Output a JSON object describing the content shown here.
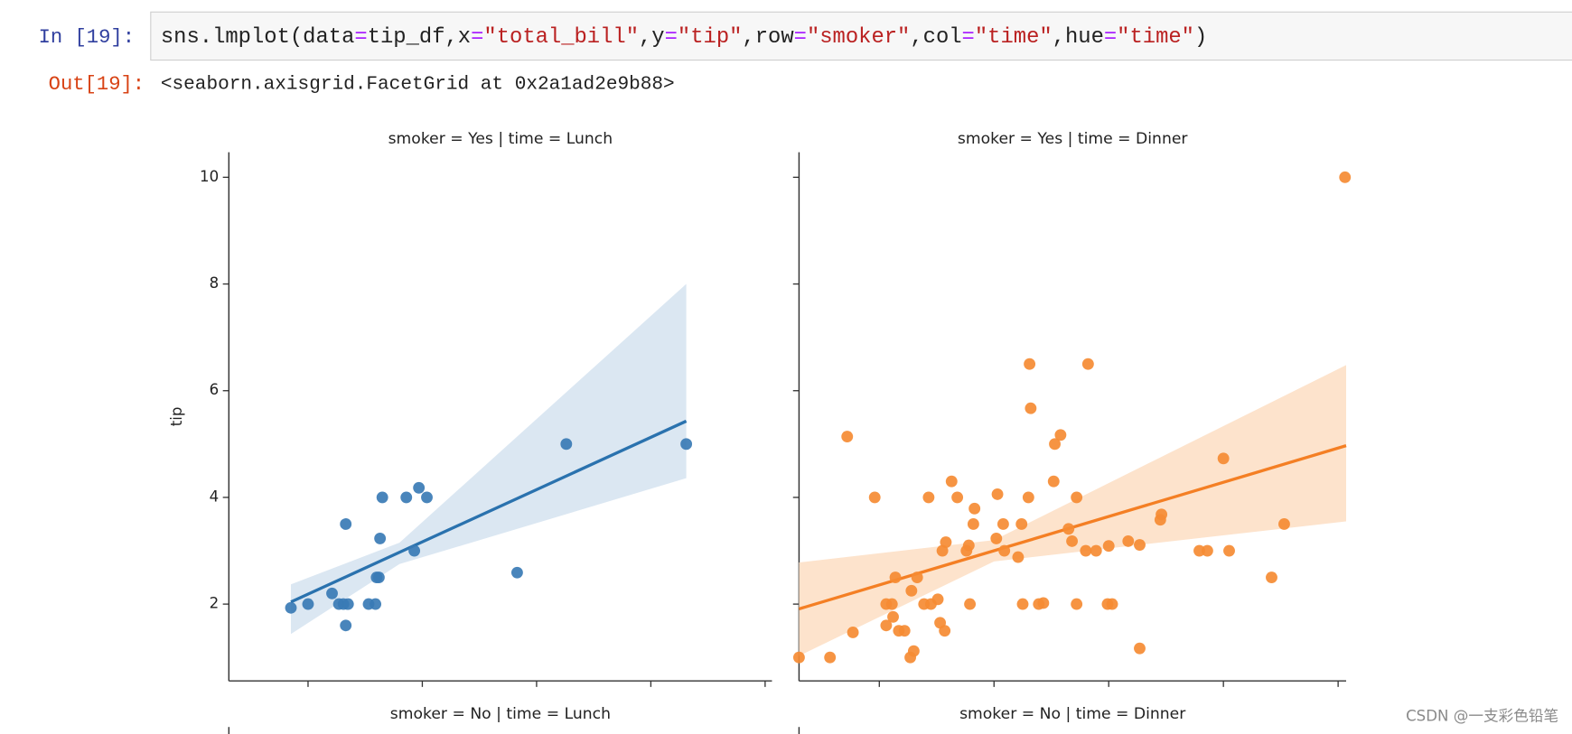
{
  "cell": {
    "in_prompt": "In  [19]:",
    "code": [
      {
        "text": "sns.lmplot(data",
        "color": "#222222"
      },
      {
        "text": "=",
        "color": "#aa22ff"
      },
      {
        "text": "tip_df,x",
        "color": "#222222"
      },
      {
        "text": "=",
        "color": "#aa22ff"
      },
      {
        "text": "\"total_bill\"",
        "color": "#ba2121"
      },
      {
        "text": ",y",
        "color": "#222222"
      },
      {
        "text": "=",
        "color": "#aa22ff"
      },
      {
        "text": "\"tip\"",
        "color": "#ba2121"
      },
      {
        "text": ",row",
        "color": "#222222"
      },
      {
        "text": "=",
        "color": "#aa22ff"
      },
      {
        "text": "\"smoker\"",
        "color": "#ba2121"
      },
      {
        "text": ",col",
        "color": "#222222"
      },
      {
        "text": "=",
        "color": "#aa22ff"
      },
      {
        "text": "\"time\"",
        "color": "#ba2121"
      },
      {
        "text": ",hue",
        "color": "#222222"
      },
      {
        "text": "=",
        "color": "#aa22ff"
      },
      {
        "text": "\"time\"",
        "color": "#ba2121"
      },
      {
        "text": ")",
        "color": "#222222"
      }
    ],
    "out_prompt": "Out[19]:",
    "output": "<seaborn.axisgrid.FacetGrid at 0x2a1ad2e9b88>"
  },
  "chart_data": [
    {
      "type": "scatter",
      "title": "smoker = Yes | time = Lunch",
      "ylabel": "tip",
      "color": "#3a7bb5",
      "x": [
        8.5,
        10,
        12.1,
        12.7,
        13.1,
        13.5,
        13.3,
        13.3,
        15.3,
        15.9,
        16.0,
        16.2,
        16.3,
        16.5,
        18.6,
        19.3,
        19.7,
        20.4,
        28.3,
        32.6,
        43.1
      ],
      "y": [
        1.93,
        2.0,
        2.2,
        2.0,
        2.0,
        2.0,
        3.5,
        1.6,
        2.0,
        2.0,
        2.5,
        2.5,
        3.23,
        4.0,
        4.0,
        3.0,
        4.18,
        4.0,
        2.59,
        5.0,
        5.0
      ],
      "fit": {
        "x": [
          8.5,
          18,
          43.1
        ],
        "y": [
          2.04,
          2.97,
          5.43
        ],
        "lower": [
          1.44,
          2.75,
          4.36
        ],
        "upper": [
          2.37,
          3.15,
          8.0
        ],
        "color": "#2a72ae",
        "band_color": "#dbe7f2"
      },
      "xlim": [
        3.07,
        50.6
      ],
      "xticks": [
        10,
        20,
        30,
        40,
        50
      ],
      "ylim": [
        0.56,
        10.47
      ],
      "yticks": [
        2,
        4,
        6,
        8,
        10
      ],
      "show_ytick_labels": true
    },
    {
      "type": "scatter",
      "title": "smoker = Yes | time = Dinner",
      "color": "#f58b33",
      "x": [
        3.0,
        5.7,
        7.2,
        7.7,
        9.6,
        10.6,
        11.1,
        10.6,
        11.4,
        11.2,
        11.7,
        12.2,
        12.7,
        13.0,
        12.8,
        13.3,
        13.9,
        14.3,
        14.5,
        15.1,
        15.3,
        15.7,
        15.5,
        15.8,
        16.3,
        16.8,
        17.6,
        17.8,
        17.9,
        18.2,
        18.3,
        20.3,
        20.2,
        20.9,
        20.8,
        22.1,
        22.4,
        22.5,
        23.0,
        23.1,
        23.2,
        23.9,
        24.3,
        25.2,
        25.3,
        25.8,
        26.5,
        26.8,
        27.2,
        27.2,
        28.0,
        28.2,
        28.9,
        29.9,
        30.3,
        30.0,
        31.7,
        32.7,
        32.7,
        34.5,
        34.6,
        37.9,
        38.6,
        40.0,
        40.5,
        44.2,
        45.3,
        50.6
      ],
      "y": [
        1.0,
        1.0,
        5.14,
        1.47,
        4.0,
        2.0,
        2.0,
        1.6,
        2.5,
        1.76,
        1.5,
        1.5,
        1.0,
        1.12,
        2.25,
        2.5,
        2.0,
        4.0,
        2.0,
        2.09,
        1.65,
        1.5,
        3.0,
        3.16,
        4.3,
        4.0,
        3.0,
        3.1,
        2.0,
        3.5,
        3.79,
        4.06,
        3.23,
        3.0,
        3.5,
        2.88,
        3.5,
        2.0,
        4.0,
        6.5,
        5.67,
        2.0,
        2.02,
        4.3,
        5.0,
        5.17,
        3.41,
        3.18,
        4.0,
        2.0,
        3.0,
        6.5,
        3.0,
        2.0,
        2.0,
        3.09,
        3.18,
        3.11,
        1.17,
        3.58,
        3.68,
        3.0,
        3.0,
        4.73,
        3.0,
        2.5,
        3.5,
        10.0
      ],
      "fit": {
        "x": [
          3.0,
          20,
          50.7
        ],
        "y": [
          1.91,
          3.0,
          4.97
        ],
        "lower": [
          1.03,
          2.8,
          3.55
        ],
        "upper": [
          2.78,
          3.2,
          6.48
        ],
        "color": "#f47f24",
        "band_color": "#fde3cc"
      },
      "xlim": [
        3.0,
        50.7
      ],
      "xticks": [
        10,
        20,
        30,
        40,
        50
      ],
      "ylim": [
        0.56,
        10.47
      ],
      "yticks": [
        2,
        4,
        6,
        8,
        10
      ],
      "show_ytick_labels": false
    },
    {
      "type": "scatter",
      "title": "smoker = No | time = Lunch"
    },
    {
      "type": "scatter",
      "title": "smoker = No | time = Dinner"
    }
  ],
  "watermark": "CSDN @一支彩色铅笔"
}
